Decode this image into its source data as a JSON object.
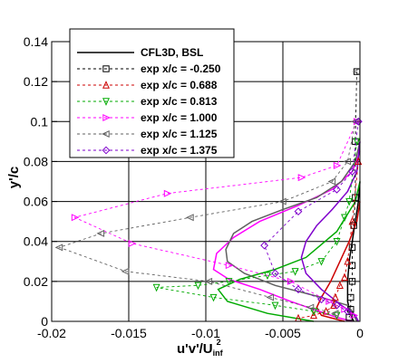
{
  "chart_data": {
    "type": "line",
    "xlabel": "u'v'/U",
    "xlabel_sub": "inf",
    "xlabel_sup": "2",
    "ylabel": "y'/c",
    "xlim": [
      -0.02,
      0
    ],
    "ylim": [
      0,
      0.14
    ],
    "x_ticks": [
      -0.02,
      -0.015,
      -0.01,
      -0.005,
      0
    ],
    "x_tick_labels": [
      "-0.02",
      "-0.015",
      "-0.01",
      "-0.005",
      "0"
    ],
    "y_ticks": [
      0,
      0.02,
      0.04,
      0.06,
      0.08,
      0.1,
      0.12,
      0.14
    ],
    "y_tick_labels": [
      "0",
      "0.02",
      "0.04",
      "0.06",
      "0.08",
      "0.1",
      "0.12",
      "0.14"
    ],
    "grid": true,
    "legend_position": "top-left",
    "series": [
      {
        "name": "CFL3D, BSL",
        "kind": "cfd",
        "color": "#000000",
        "dash": "",
        "points": [
          [
            -0.0004,
            0
          ],
          [
            -0.0006,
            0.003
          ],
          [
            -0.0008,
            0.01
          ],
          [
            -0.0008,
            0.02
          ],
          [
            -0.0007,
            0.03
          ],
          [
            -0.0005,
            0.04
          ],
          [
            -0.0003,
            0.05
          ],
          [
            -0.0001,
            0.06
          ],
          [
            0,
            0.07
          ]
        ]
      },
      {
        "name": "",
        "kind": "cfd",
        "color": "#cc0000",
        "dash": "",
        "points": [
          [
            -0.001,
            0
          ],
          [
            -0.0025,
            0.003
          ],
          [
            -0.0028,
            0.007
          ],
          [
            -0.0025,
            0.012
          ],
          [
            -0.0019,
            0.02
          ],
          [
            -0.0013,
            0.03
          ],
          [
            -0.0007,
            0.04
          ],
          [
            -0.0002,
            0.05
          ],
          [
            0,
            0.06
          ]
        ]
      },
      {
        "name": "",
        "kind": "cfd",
        "color": "#00aa00",
        "dash": "",
        "points": [
          [
            -0.003,
            0
          ],
          [
            -0.006,
            0.004
          ],
          [
            -0.0086,
            0.01
          ],
          [
            -0.0092,
            0.016
          ],
          [
            -0.0078,
            0.021
          ],
          [
            -0.0055,
            0.026
          ],
          [
            -0.0035,
            0.032
          ],
          [
            -0.0015,
            0.045
          ],
          [
            -0.0003,
            0.06
          ],
          [
            0,
            0.07
          ]
        ]
      },
      {
        "name": "",
        "kind": "cfd",
        "color": "#ff00ff",
        "dash": "",
        "points": [
          [
            -0.0005,
            0
          ],
          [
            -0.0015,
            0.002
          ],
          [
            -0.003,
            0.006
          ],
          [
            -0.0045,
            0.01
          ],
          [
            -0.0065,
            0.016
          ],
          [
            -0.0085,
            0.021
          ],
          [
            -0.0095,
            0.026
          ],
          [
            -0.0093,
            0.034
          ],
          [
            -0.0082,
            0.042
          ],
          [
            -0.0065,
            0.05
          ],
          [
            -0.004,
            0.058
          ],
          [
            -0.0018,
            0.066
          ],
          [
            -0.0005,
            0.075
          ],
          [
            0,
            0.085
          ]
        ]
      },
      {
        "name": "",
        "kind": "cfd",
        "color": "#606060",
        "dash": "",
        "points": [
          [
            -0.0002,
            0
          ],
          [
            -0.0005,
            0.005
          ],
          [
            -0.0008,
            0.008
          ],
          [
            -0.0025,
            0.012
          ],
          [
            -0.0055,
            0.018
          ],
          [
            -0.0075,
            0.024
          ],
          [
            -0.0086,
            0.03
          ],
          [
            -0.0087,
            0.036
          ],
          [
            -0.0082,
            0.044
          ],
          [
            -0.007,
            0.05
          ],
          [
            -0.005,
            0.056
          ],
          [
            -0.0028,
            0.062
          ],
          [
            -0.0012,
            0.07
          ],
          [
            -0.0003,
            0.08
          ],
          [
            0,
            0.09
          ]
        ]
      },
      {
        "name": "",
        "kind": "cfd",
        "color": "#7f00cc",
        "dash": "",
        "points": [
          [
            -0.0001,
            0
          ],
          [
            -0.0003,
            0.003
          ],
          [
            -0.0012,
            0.008
          ],
          [
            -0.0025,
            0.016
          ],
          [
            -0.0035,
            0.024
          ],
          [
            -0.0038,
            0.032
          ],
          [
            -0.0035,
            0.04
          ],
          [
            -0.0028,
            0.048
          ],
          [
            -0.0018,
            0.056
          ],
          [
            -0.0008,
            0.065
          ],
          [
            -0.0002,
            0.075
          ],
          [
            0,
            0.09
          ]
        ]
      },
      {
        "name": "exp x/c = -0.250",
        "kind": "exp",
        "color": "#000000",
        "dash": "3,3",
        "marker": "square",
        "points": [
          [
            -0.0002,
            0.125
          ],
          [
            -0.0003,
            0.09
          ],
          [
            -0.0003,
            0.062
          ],
          [
            -0.0004,
            0.048
          ],
          [
            -0.0005,
            0.037
          ],
          [
            -0.0005,
            0.028
          ],
          [
            -0.0005,
            0.02
          ],
          [
            -0.0006,
            0.012
          ],
          [
            -0.0006,
            0.006
          ],
          [
            -0.0007,
            0.002
          ]
        ]
      },
      {
        "name": "exp x/c = 0.688",
        "kind": "exp",
        "color": "#cc0000",
        "dash": "3,3",
        "marker": "triangle-up",
        "points": [
          [
            -0.0001,
            0.08
          ],
          [
            -0.0005,
            0.05
          ],
          [
            -0.0008,
            0.03
          ],
          [
            -0.001,
            0.022
          ],
          [
            -0.0013,
            0.018
          ],
          [
            -0.0016,
            0.012
          ],
          [
            -0.0017,
            0.008
          ],
          [
            -0.0022,
            0.005
          ],
          [
            -0.003,
            0.003
          ],
          [
            -0.004,
            0.0015
          ]
        ]
      },
      {
        "name": "exp x/c = 0.813",
        "kind": "exp",
        "color": "#00aa00",
        "dash": "3,3",
        "marker": "triangle-down",
        "points": [
          [
            -0.0002,
            0.09
          ],
          [
            -0.0007,
            0.06
          ],
          [
            -0.001,
            0.052
          ],
          [
            -0.0015,
            0.04
          ],
          [
            -0.0025,
            0.03
          ],
          [
            -0.0042,
            0.025
          ],
          [
            -0.006,
            0.023
          ],
          [
            -0.0085,
            0.02
          ],
          [
            -0.0105,
            0.018
          ],
          [
            -0.0132,
            0.017
          ],
          [
            -0.0095,
            0.012
          ],
          [
            -0.0055,
            0.008
          ],
          [
            -0.003,
            0.005
          ],
          [
            -0.0015,
            0.003
          ]
        ]
      },
      {
        "name": "exp x/c = 1.000",
        "kind": "exp",
        "color": "#ff00ff",
        "dash": "3,3",
        "marker": "triangle-right",
        "points": [
          [
            -0.0002,
            0.1
          ],
          [
            -0.0015,
            0.078
          ],
          [
            -0.0038,
            0.072
          ],
          [
            -0.0125,
            0.064
          ],
          [
            -0.0185,
            0.052
          ],
          [
            -0.0148,
            0.039
          ],
          [
            -0.0085,
            0.028
          ],
          [
            -0.0045,
            0.02
          ],
          [
            -0.002,
            0.01
          ],
          [
            -0.001,
            0.006
          ],
          [
            -0.0004,
            0.003
          ]
        ]
      },
      {
        "name": "exp x/c = 1.125",
        "kind": "exp",
        "color": "#606060",
        "dash": "3,3",
        "marker": "triangle-left",
        "points": [
          [
            -0.0002,
            0.125
          ],
          [
            -0.0003,
            0.1
          ],
          [
            -0.0008,
            0.08
          ],
          [
            -0.0018,
            0.07
          ],
          [
            -0.005,
            0.06
          ],
          [
            -0.011,
            0.052
          ],
          [
            -0.0168,
            0.044
          ],
          [
            -0.0195,
            0.037
          ],
          [
            -0.0152,
            0.025
          ],
          [
            -0.0098,
            0.02
          ],
          [
            -0.0058,
            0.012
          ],
          [
            -0.0032,
            0.007
          ],
          [
            -0.0016,
            0.004
          ]
        ]
      },
      {
        "name": "exp x/c = 1.375",
        "kind": "exp",
        "color": "#7f00cc",
        "dash": "3,3",
        "marker": "diamond",
        "points": [
          [
            -0.0001,
            0.1
          ],
          [
            -0.0005,
            0.075
          ],
          [
            -0.0015,
            0.066
          ],
          [
            -0.004,
            0.055
          ],
          [
            -0.0062,
            0.038
          ],
          [
            -0.0055,
            0.024
          ],
          [
            -0.004,
            0.016
          ],
          [
            -0.0025,
            0.011
          ],
          [
            -0.0015,
            0.008
          ],
          [
            -0.0008,
            0.005
          ]
        ]
      }
    ]
  }
}
